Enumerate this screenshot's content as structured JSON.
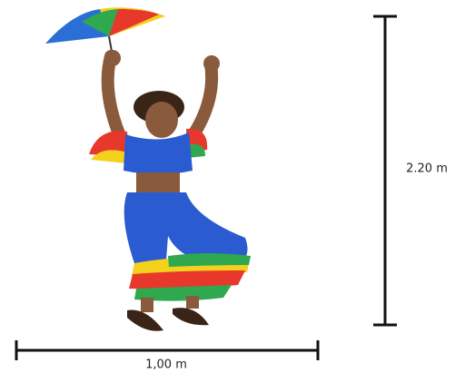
{
  "dimensions": {
    "height": {
      "label": "2.20 m"
    },
    "width": {
      "label": "1,00 m"
    }
  }
}
